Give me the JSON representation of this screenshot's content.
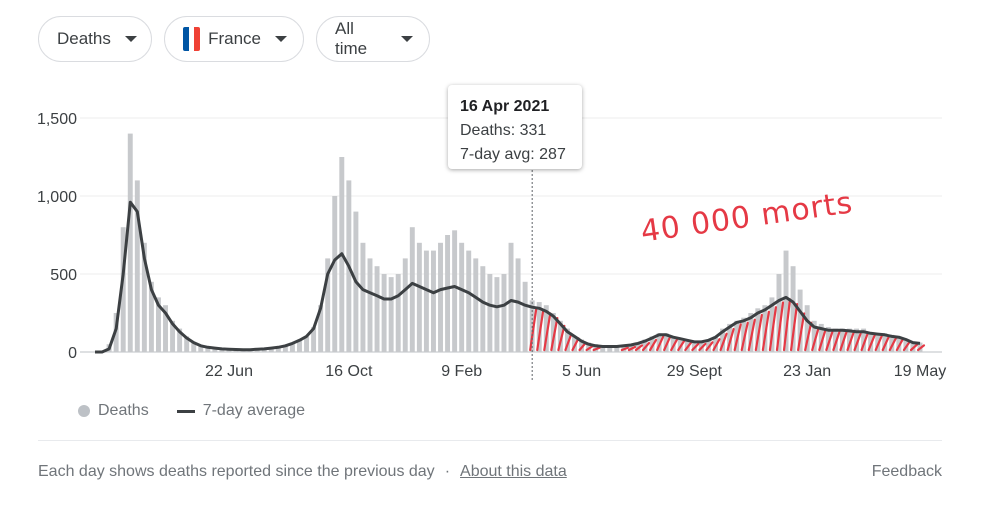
{
  "filters": {
    "metric": "Deaths",
    "country": "France",
    "country_flag_colors": [
      "#0055a4",
      "#ffffff",
      "#ef4135"
    ],
    "range": "All time"
  },
  "tooltip": {
    "date": "16 Apr 2021",
    "deaths": "Deaths: 331",
    "avg": "7-day avg: 287",
    "index": 62
  },
  "annotation": "40 000 morts",
  "legend": {
    "bars": "Deaths",
    "line": "7-day average"
  },
  "footer": {
    "note": "Each day shows deaths reported since the previous day",
    "separator": "·",
    "about_link": "About this data",
    "feedback": "Feedback"
  },
  "colors": {
    "bar": "#c7c9cc",
    "line": "#3c4043",
    "annotation": "#e53945",
    "grid": "#dadce0"
  },
  "chart_data": {
    "type": "bar+line",
    "title": "",
    "xlabel": "",
    "ylabel": "",
    "ylim": [
      0,
      1500
    ],
    "yticks": [
      0,
      500,
      1000,
      1500
    ],
    "ytick_labels": [
      "0",
      "500",
      "1,000",
      "1,500"
    ],
    "xticks": [
      {
        "index": 19,
        "label": "22 Jun"
      },
      {
        "index": 36,
        "label": "16 Oct"
      },
      {
        "index": 52,
        "label": "9 Feb"
      },
      {
        "index": 69,
        "label": "5 Jun"
      },
      {
        "index": 85,
        "label": "29 Sept"
      },
      {
        "index": 101,
        "label": "23 Jan"
      },
      {
        "index": 117,
        "label": "19 May"
      }
    ],
    "bin": "weekly",
    "series": [
      {
        "name": "Deaths",
        "type": "bar",
        "values": [
          0,
          0,
          50,
          250,
          800,
          1400,
          1100,
          700,
          450,
          350,
          300,
          200,
          150,
          100,
          60,
          40,
          30,
          25,
          20,
          20,
          15,
          15,
          15,
          20,
          20,
          25,
          30,
          40,
          60,
          80,
          100,
          160,
          300,
          600,
          1000,
          1250,
          1100,
          900,
          700,
          600,
          550,
          500,
          480,
          500,
          600,
          800,
          700,
          650,
          650,
          700,
          750,
          780,
          700,
          650,
          600,
          550,
          500,
          480,
          500,
          700,
          600,
          450,
          331,
          320,
          300,
          250,
          200,
          150,
          100,
          80,
          60,
          50,
          40,
          40,
          40,
          40,
          50,
          60,
          80,
          100,
          120,
          120,
          100,
          90,
          80,
          70,
          70,
          80,
          100,
          150,
          180,
          200,
          220,
          250,
          280,
          300,
          350,
          500,
          650,
          550,
          400,
          300,
          200,
          180,
          160,
          150,
          150,
          150,
          150,
          150,
          120,
          120,
          120,
          110,
          100,
          80,
          60,
          60
        ]
      },
      {
        "name": "7-day average",
        "type": "line",
        "values": [
          0,
          0,
          20,
          150,
          500,
          960,
          900,
          600,
          400,
          300,
          250,
          180,
          130,
          90,
          60,
          40,
          30,
          25,
          20,
          18,
          16,
          15,
          15,
          18,
          20,
          25,
          30,
          40,
          55,
          75,
          100,
          150,
          280,
          500,
          590,
          630,
          550,
          450,
          400,
          380,
          360,
          340,
          340,
          360,
          400,
          440,
          420,
          400,
          380,
          400,
          410,
          420,
          400,
          380,
          350,
          320,
          300,
          290,
          300,
          330,
          320,
          300,
          287,
          280,
          260,
          230,
          180,
          130,
          100,
          70,
          50,
          40,
          35,
          35,
          35,
          40,
          45,
          55,
          70,
          90,
          110,
          110,
          95,
          85,
          75,
          65,
          65,
          75,
          95,
          130,
          160,
          190,
          200,
          220,
          250,
          270,
          300,
          330,
          350,
          320,
          260,
          200,
          160,
          150,
          140,
          140,
          140,
          135,
          130,
          130,
          120,
          115,
          110,
          100,
          95,
          80,
          60,
          55
        ]
      },
      {
        "name": "40 000 morts (highlighted)",
        "type": "annotation-range",
        "from_index": 62,
        "to_index": 117
      }
    ]
  }
}
